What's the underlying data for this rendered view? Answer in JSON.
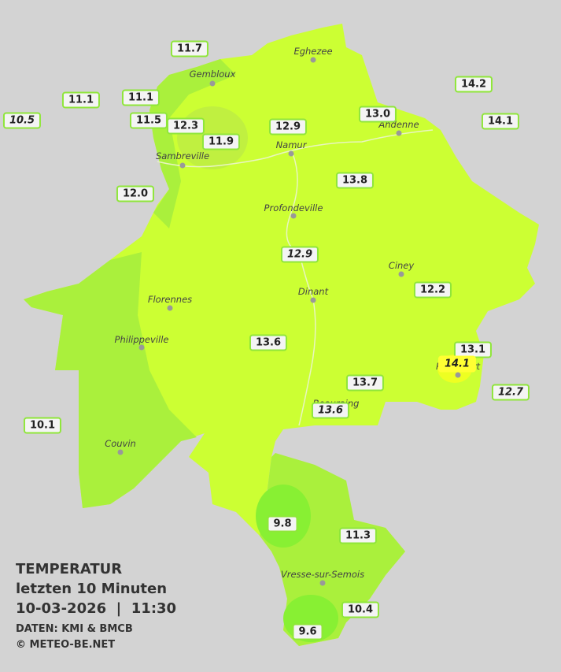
{
  "title": {
    "line1": "TEMPERATUR",
    "line2": "letzten 10 Minuten",
    "line3": "10-03-2026  |  11:30",
    "source": "DATEN: KMI & BMCB",
    "copyright": "© METEO-BE.NET"
  },
  "cities": [
    "Eghezee",
    "Gembloux",
    "Andenne",
    "Namur",
    "Sambreville",
    "Profondeville",
    "Ciney",
    "Dinant",
    "Florennes",
    "Philippeville",
    "Rochefort",
    "Beauraing",
    "Couvin",
    "Vresse-sur-Semois"
  ],
  "stations": [
    {
      "label": "11.7",
      "italic": false
    },
    {
      "label": "11.1",
      "italic": false
    },
    {
      "label": "11.1",
      "italic": false
    },
    {
      "label": "10.5",
      "italic": true
    },
    {
      "label": "11.5",
      "italic": false
    },
    {
      "label": "12.3",
      "italic": false
    },
    {
      "label": "11.9",
      "italic": false
    },
    {
      "label": "12.9",
      "italic": false
    },
    {
      "label": "13.0",
      "italic": false
    },
    {
      "label": "14.2",
      "italic": false
    },
    {
      "label": "14.1",
      "italic": false
    },
    {
      "label": "12.0",
      "italic": false
    },
    {
      "label": "13.8",
      "italic": false
    },
    {
      "label": "12.9",
      "italic": true
    },
    {
      "label": "12.2",
      "italic": false
    },
    {
      "label": "13.6",
      "italic": false
    },
    {
      "label": "13.1",
      "italic": false
    },
    {
      "label": "14.1",
      "italic": true
    },
    {
      "label": "13.7",
      "italic": false
    },
    {
      "label": "13.6",
      "italic": true
    },
    {
      "label": "12.7",
      "italic": true
    },
    {
      "label": "10.1",
      "italic": false
    },
    {
      "label": "9.8",
      "italic": false
    },
    {
      "label": "11.3",
      "italic": false
    },
    {
      "label": "10.4",
      "italic": false
    },
    {
      "label": "9.6",
      "italic": false
    }
  ]
}
